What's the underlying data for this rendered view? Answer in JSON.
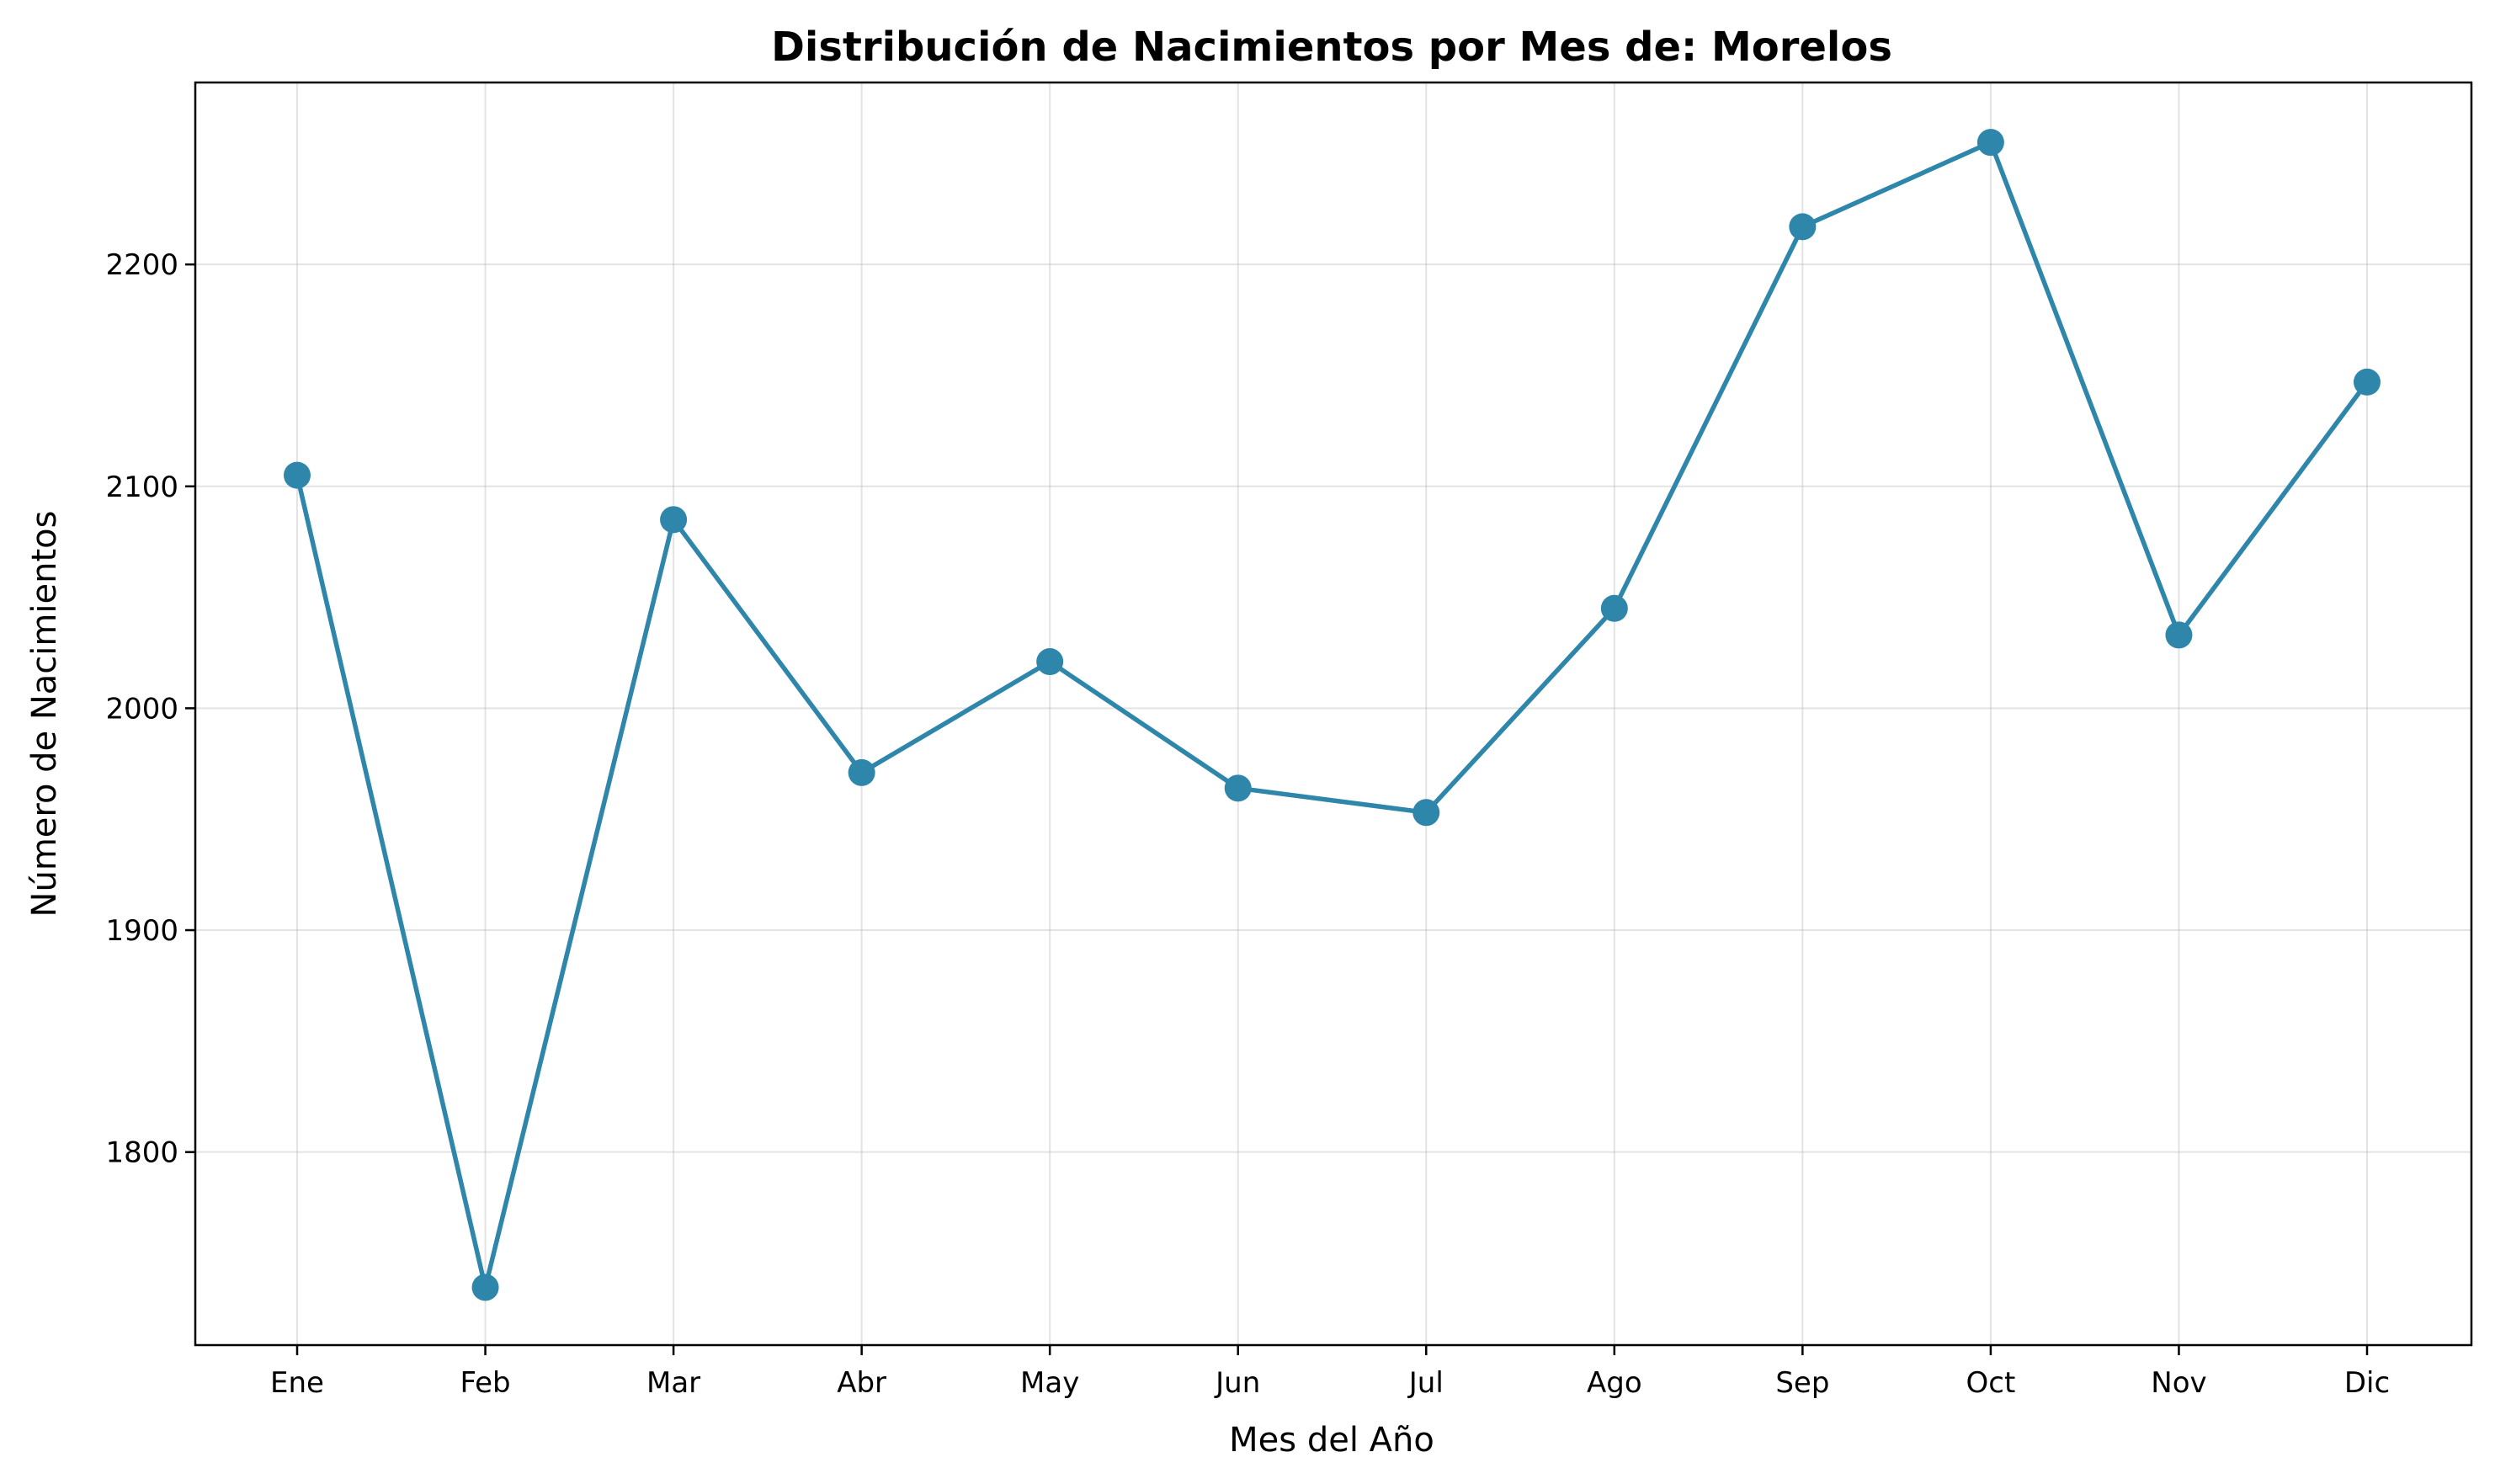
{
  "chart_data": {
    "type": "line",
    "title": "Distribución de Nacimientos por Mes de: Morelos",
    "xlabel": "Mes del Año",
    "ylabel": "Número de Nacimientos",
    "categories": [
      "Ene",
      "Feb",
      "Mar",
      "Abr",
      "May",
      "Jun",
      "Jul",
      "Ago",
      "Sep",
      "Oct",
      "Nov",
      "Dic"
    ],
    "values": [
      2105,
      1739,
      2085,
      1971,
      2021,
      1964,
      1953,
      2045,
      2217,
      2255,
      2033,
      2147
    ],
    "ylim": [
      1713,
      2282
    ],
    "yticks": [
      1800,
      1900,
      2000,
      2100,
      2200
    ],
    "grid": true,
    "line_color": "#2e86ab"
  }
}
